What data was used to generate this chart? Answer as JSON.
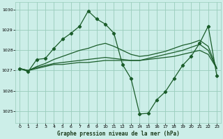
{
  "background_color": "#cceee8",
  "grid_color": "#99ccbb",
  "line_color": "#1a5c2a",
  "title": "Graphe pression niveau de la mer (hPa)",
  "xlim": [
    -0.5,
    23.5
  ],
  "ylim": [
    1024.4,
    1030.4
  ],
  "yticks": [
    1025,
    1026,
    1027,
    1028,
    1029,
    1030
  ],
  "xticks": [
    0,
    1,
    2,
    3,
    4,
    5,
    6,
    7,
    8,
    9,
    10,
    11,
    12,
    13,
    14,
    15,
    16,
    17,
    18,
    19,
    20,
    21,
    22,
    23
  ],
  "series": [
    {
      "x": [
        0,
        1,
        2,
        3,
        4,
        5,
        6,
        7,
        8,
        9,
        10,
        11,
        12,
        13,
        14,
        15,
        16,
        17,
        18,
        19,
        20,
        21,
        22,
        23
      ],
      "y": [
        1027.1,
        1027.0,
        1027.1,
        1027.2,
        1027.3,
        1027.3,
        1027.35,
        1027.4,
        1027.4,
        1027.45,
        1027.5,
        1027.5,
        1027.5,
        1027.5,
        1027.5,
        1027.55,
        1027.6,
        1027.65,
        1027.7,
        1027.8,
        1027.9,
        1028.0,
        1027.8,
        1027.1
      ],
      "marker": false
    },
    {
      "x": [
        0,
        1,
        2,
        3,
        4,
        5,
        6,
        7,
        8,
        9,
        10,
        11,
        12,
        13,
        14,
        15,
        16,
        17,
        18,
        19,
        20,
        21,
        22,
        23
      ],
      "y": [
        1027.1,
        1027.0,
        1027.15,
        1027.25,
        1027.35,
        1027.4,
        1027.45,
        1027.5,
        1027.55,
        1027.6,
        1027.65,
        1027.6,
        1027.55,
        1027.5,
        1027.5,
        1027.6,
        1027.7,
        1027.8,
        1027.9,
        1028.0,
        1028.15,
        1028.3,
        1028.0,
        1027.1
      ],
      "marker": false
    },
    {
      "x": [
        0,
        1,
        2,
        3,
        4,
        5,
        6,
        7,
        8,
        9,
        10,
        11,
        12,
        13,
        14,
        15,
        16,
        17,
        18,
        19,
        20,
        21,
        22,
        23
      ],
      "y": [
        1027.1,
        1027.0,
        1027.2,
        1027.35,
        1027.55,
        1027.7,
        1027.85,
        1028.0,
        1028.1,
        1028.25,
        1028.35,
        1028.2,
        1028.0,
        1027.8,
        1027.7,
        1027.75,
        1027.85,
        1027.95,
        1028.1,
        1028.25,
        1028.35,
        1028.5,
        1028.2,
        1027.1
      ],
      "marker": false
    },
    {
      "x": [
        0,
        1,
        2,
        3,
        4,
        5,
        6,
        7,
        8,
        9,
        10,
        11,
        12,
        13,
        14,
        15,
        16,
        17,
        18,
        19,
        20,
        21,
        22,
        23
      ],
      "y": [
        1027.1,
        1026.95,
        1027.55,
        1027.6,
        1028.1,
        1028.55,
        1028.85,
        1029.2,
        1029.95,
        1029.55,
        1029.3,
        1028.85,
        1027.3,
        1026.6,
        1024.85,
        1024.88,
        1025.55,
        1025.95,
        1026.6,
        1027.25,
        1027.7,
        1028.35,
        1029.2,
        1026.75
      ],
      "marker": true
    }
  ]
}
